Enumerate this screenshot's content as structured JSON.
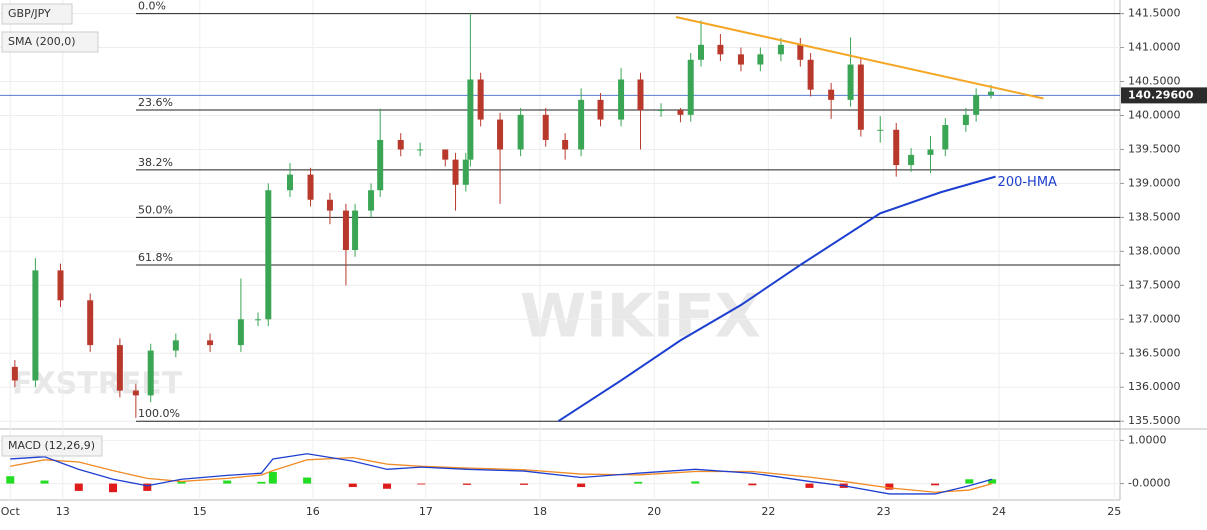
{
  "chart_data": {
    "type": "candlestick",
    "title": "GBP/JPY",
    "indicator_label": "SMA (200,0)",
    "watermarks": [
      "FXSTREET",
      "WiKiFX"
    ],
    "xlim": [
      -0.09,
      9.72
    ],
    "xticks": [
      {
        "value": 0,
        "label": "Oct"
      },
      {
        "value": 0.46,
        "label": "13"
      },
      {
        "value": 1.66,
        "label": "15"
      },
      {
        "value": 2.65,
        "label": "16"
      },
      {
        "value": 3.64,
        "label": "17"
      },
      {
        "value": 4.64,
        "label": "18"
      },
      {
        "value": 5.64,
        "label": "20"
      },
      {
        "value": 6.64,
        "label": "22"
      },
      {
        "value": 7.65,
        "label": "23"
      },
      {
        "value": 8.66,
        "label": "24"
      },
      {
        "value": 9.67,
        "label": "25"
      }
    ],
    "ylim": [
      135.4,
      141.7
    ],
    "yticks": [
      {
        "value": 135.5,
        "label": "135.5000"
      },
      {
        "value": 136,
        "label": "136.0000"
      },
      {
        "value": 136.5,
        "label": "136.5000"
      },
      {
        "value": 137,
        "label": "137.0000"
      },
      {
        "value": 137.5,
        "label": "137.5000"
      },
      {
        "value": 138,
        "label": "138.0000"
      },
      {
        "value": 138.5,
        "label": "138.5000"
      },
      {
        "value": 139,
        "label": "139.0000"
      },
      {
        "value": 139.5,
        "label": "139.5000"
      },
      {
        "value": 140,
        "label": "140.0000"
      },
      {
        "value": 140.5,
        "label": "140.5000"
      },
      {
        "value": 141,
        "label": "141.0000"
      },
      {
        "value": 141.5,
        "label": "141.5000"
      }
    ],
    "grid": true,
    "up_color": "#3aa655",
    "down_color": "#b8392c",
    "series": [
      {
        "name": "GBP/JPY",
        "x": [
          0.04,
          0.22,
          0.44,
          0.7,
          0.96,
          1.1,
          1.23,
          1.45,
          1.75,
          2.02,
          2.17,
          2.26,
          2.45,
          2.63,
          2.8,
          2.94,
          3.02,
          3.16,
          3.24,
          3.42,
          3.59,
          3.81,
          3.9,
          3.99,
          4.03,
          4.12,
          4.29,
          4.47,
          4.69,
          4.86,
          5.0,
          5.17,
          5.35,
          5.52,
          5.7,
          5.87,
          5.96,
          6.05,
          6.22,
          6.4,
          6.57,
          6.75,
          6.92,
          7.01,
          7.19,
          7.36,
          7.45,
          7.62,
          7.76,
          7.89,
          8.06,
          8.19,
          8.37,
          8.46,
          8.59
        ],
        "open": [
          136.3,
          136.1,
          137.72,
          137.28,
          136.62,
          135.95,
          135.88,
          136.54,
          136.69,
          136.62,
          137.0,
          137.0,
          138.9,
          139.13,
          138.76,
          138.6,
          138.02,
          138.6,
          138.9,
          139.64,
          139.5,
          139.5,
          139.35,
          138.98,
          139.35,
          140.53,
          139.94,
          139.5,
          140.01,
          139.64,
          139.5,
          140.23,
          139.94,
          140.53,
          140.08,
          140.08,
          140.01,
          140.82,
          141.04,
          140.9,
          140.75,
          140.9,
          141.04,
          140.82,
          140.38,
          140.23,
          140.75,
          139.79,
          139.79,
          139.27,
          139.42,
          139.5,
          139.86,
          140.01,
          140.3
        ],
        "high": [
          136.4,
          137.9,
          137.82,
          137.38,
          136.72,
          136.05,
          136.64,
          136.79,
          136.79,
          137.6,
          137.1,
          139.0,
          139.3,
          139.23,
          138.86,
          138.7,
          138.7,
          139.0,
          140.1,
          139.74,
          139.6,
          139.45,
          139.45,
          139.45,
          141.5,
          140.63,
          140.04,
          140.11,
          140.11,
          139.74,
          140.4,
          140.33,
          140.7,
          140.63,
          140.18,
          140.11,
          140.92,
          141.4,
          141.2,
          141.0,
          141.0,
          141.14,
          141.14,
          140.92,
          140.48,
          141.15,
          140.85,
          139.99,
          139.89,
          139.52,
          139.7,
          139.96,
          140.11,
          140.4,
          140.45
        ],
        "low": [
          136.0,
          136.0,
          137.18,
          136.52,
          135.85,
          135.55,
          135.78,
          136.44,
          136.52,
          136.52,
          136.9,
          136.9,
          138.8,
          138.66,
          138.4,
          137.5,
          137.92,
          138.5,
          138.8,
          139.4,
          139.4,
          139.25,
          138.6,
          138.88,
          139.25,
          139.84,
          138.7,
          139.4,
          139.54,
          139.35,
          139.4,
          139.84,
          139.84,
          139.5,
          139.98,
          139.9,
          139.91,
          140.72,
          140.8,
          140.65,
          140.65,
          140.8,
          140.72,
          140.28,
          139.95,
          140.13,
          139.69,
          139.6,
          139.1,
          139.17,
          139.15,
          139.4,
          139.76,
          139.91,
          140.25
        ],
        "close": [
          136.1,
          137.72,
          137.28,
          136.62,
          135.95,
          135.88,
          136.54,
          136.69,
          136.62,
          137.0,
          137.0,
          138.9,
          139.13,
          138.76,
          138.6,
          138.02,
          138.6,
          138.9,
          139.64,
          139.5,
          139.5,
          139.35,
          138.98,
          139.35,
          140.53,
          139.94,
          139.5,
          140.01,
          139.64,
          139.5,
          140.23,
          139.94,
          140.53,
          140.08,
          140.08,
          140.01,
          140.82,
          141.04,
          140.9,
          140.75,
          140.9,
          141.04,
          140.82,
          140.38,
          140.23,
          140.75,
          139.79,
          139.79,
          139.27,
          139.42,
          139.5,
          139.86,
          140.01,
          140.3,
          140.35
        ]
      }
    ],
    "hma": {
      "name": "200-HMA",
      "color": "#1d3fd0",
      "x": [
        4.8,
        5.35,
        5.87,
        6.4,
        6.92,
        7.62,
        8.15,
        8.63
      ],
      "values": [
        135.5,
        136.1,
        136.69,
        137.21,
        137.8,
        138.56,
        138.87,
        139.1
      ]
    },
    "trendline": {
      "color": "#f5a623",
      "x": [
        5.83,
        9.05
      ],
      "values": [
        141.45,
        140.25
      ]
    },
    "fib_levels": [
      {
        "label": "0.0%",
        "value": 141.5
      },
      {
        "label": "23.6%",
        "value": 140.08
      },
      {
        "label": "38.2%",
        "value": 139.2
      },
      {
        "label": "50.0%",
        "value": 138.5
      },
      {
        "label": "61.8%",
        "value": 137.8
      },
      {
        "label": "100.0%",
        "value": 135.5
      }
    ],
    "last_price": {
      "value": 140.296,
      "label": "140.29600"
    },
    "macd": {
      "title": "MACD (12,26,9)",
      "ylim": [
        -0.38,
        1.24
      ],
      "yticks": [
        {
          "value": 0,
          "label": "-0.0000"
        },
        {
          "value": 1,
          "label": "1.0000"
        }
      ],
      "x": [
        0,
        0.3,
        0.6,
        0.9,
        1.2,
        1.5,
        1.9,
        2.2,
        2.3,
        2.6,
        3.0,
        3.3,
        3.6,
        4.0,
        4.5,
        5.0,
        5.5,
        6.0,
        6.5,
        7.0,
        7.3,
        7.7,
        8.1,
        8.4,
        8.6
      ],
      "macd": {
        "color": "#1d3fd0",
        "values": [
          0.57,
          0.62,
          0.33,
          0.1,
          -0.05,
          0.1,
          0.19,
          0.24,
          0.57,
          0.69,
          0.52,
          0.33,
          0.38,
          0.33,
          0.29,
          0.14,
          0.24,
          0.33,
          0.24,
          0.05,
          -0.05,
          -0.24,
          -0.24,
          -0.05,
          0.1
        ]
      },
      "signal": {
        "color": "#f08a24",
        "values": [
          0.4,
          0.55,
          0.5,
          0.3,
          0.12,
          0.05,
          0.12,
          0.2,
          0.3,
          0.55,
          0.6,
          0.45,
          0.4,
          0.36,
          0.32,
          0.22,
          0.2,
          0.28,
          0.28,
          0.15,
          0.05,
          -0.1,
          -0.2,
          -0.15,
          0.0
        ]
      },
      "histogram": {
        "up_color": "#22dd22",
        "down_color": "#e01b1b",
        "values": [
          0.17,
          0.07,
          -0.17,
          -0.2,
          -0.17,
          0.05,
          0.07,
          0.04,
          0.27,
          0.14,
          -0.08,
          -0.12,
          -0.02,
          -0.03,
          -0.03,
          -0.08,
          0.04,
          0.05,
          -0.04,
          -0.1,
          -0.1,
          -0.14,
          -0.04,
          0.1,
          0.1
        ]
      }
    }
  }
}
